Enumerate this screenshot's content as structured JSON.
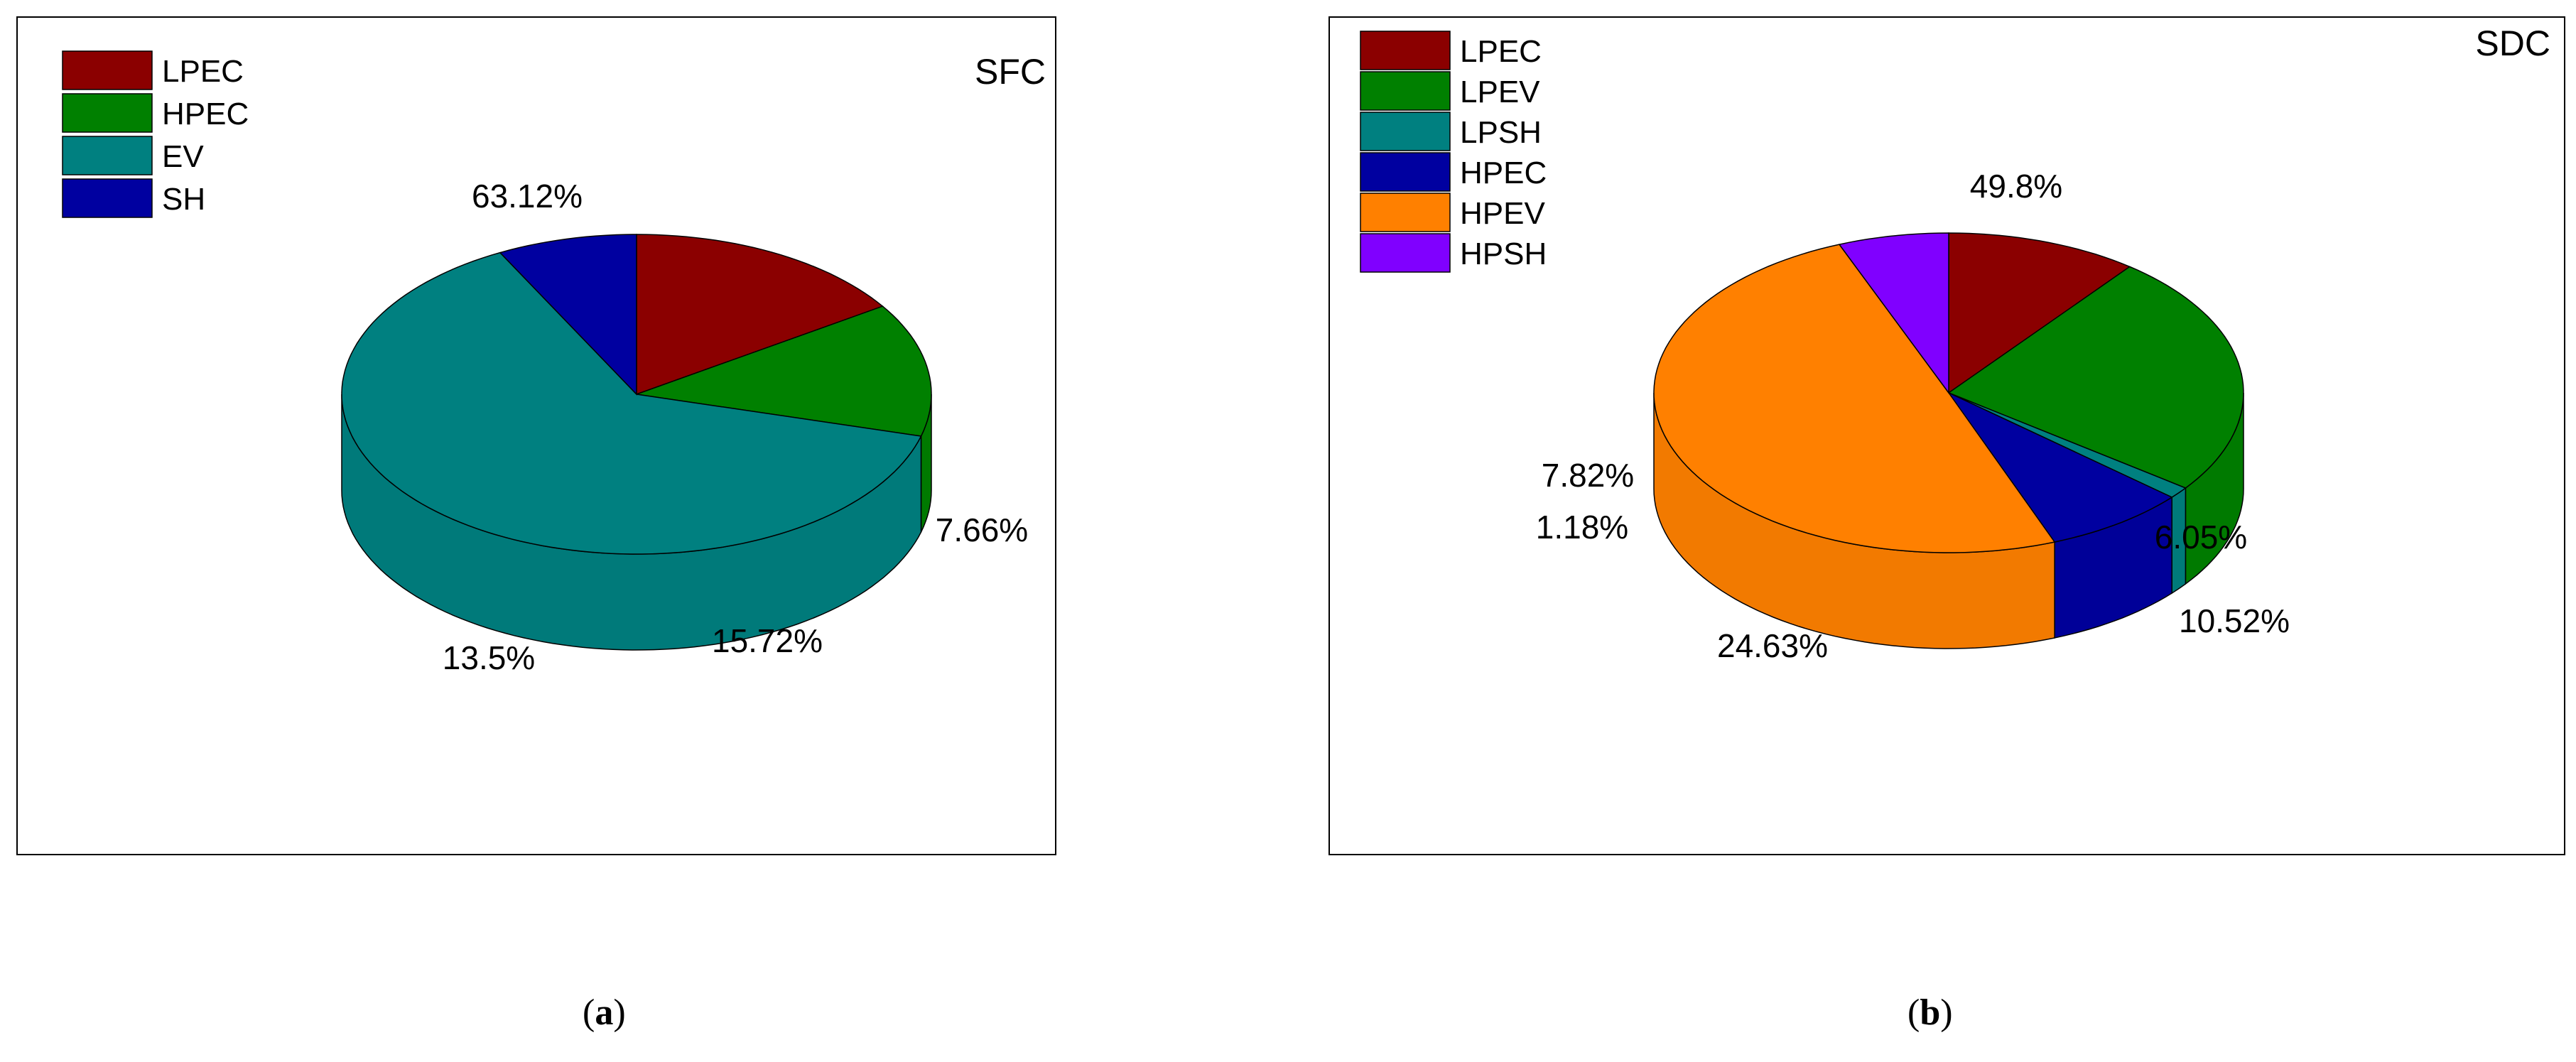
{
  "chart_data": [
    {
      "type": "pie",
      "title": "SFC",
      "panel_label": {
        "open": "(",
        "letter": "a",
        "close": ")"
      },
      "legend_position": "top-left",
      "three_d": true,
      "slices": [
        {
          "name": "LPEC",
          "value": 15.72,
          "label": "15.72%",
          "color": "#8b0000"
        },
        {
          "name": "HPEC",
          "value": 13.5,
          "label": "13.5%",
          "color": "#008000"
        },
        {
          "name": "EV",
          "value": 63.12,
          "label": "63.12%",
          "color": "#008080"
        },
        {
          "name": "SH",
          "value": 7.66,
          "label": "7.66%",
          "color": "#0000a0"
        }
      ]
    },
    {
      "type": "pie",
      "title": "SDC",
      "panel_label": {
        "open": "(",
        "letter": "b",
        "close": ")"
      },
      "legend_position": "top-left",
      "three_d": true,
      "slices": [
        {
          "name": "LPEC",
          "value": 10.52,
          "label": "10.52%",
          "color": "#8b0000"
        },
        {
          "name": "LPEV",
          "value": 24.63,
          "label": "24.63%",
          "color": "#008000"
        },
        {
          "name": "LPSH",
          "value": 1.18,
          "label": "1.18%",
          "color": "#008080"
        },
        {
          "name": "HPEC",
          "value": 7.82,
          "label": "7.82%",
          "color": "#0000a0"
        },
        {
          "name": "HPEV",
          "value": 49.8,
          "label": "49.8%",
          "color": "#ff8000"
        },
        {
          "name": "HPSH",
          "value": 6.05,
          "label": "6.05%",
          "color": "#8000ff"
        }
      ]
    }
  ]
}
